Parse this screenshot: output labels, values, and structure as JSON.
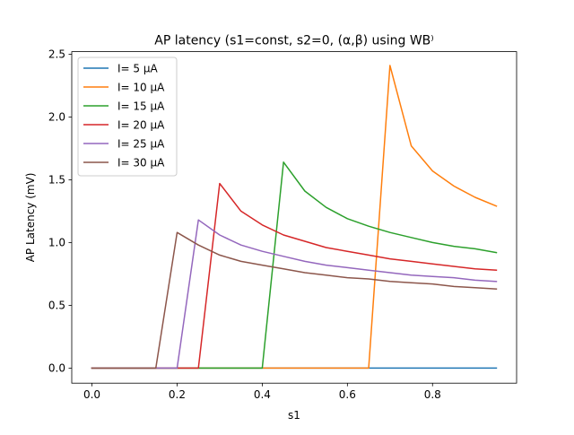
{
  "chart_data": {
    "type": "line",
    "title": "AP latency (s1=const, s2=0, (α,β) using WB⁾",
    "xlabel": "s1",
    "ylabel": "AP Latency (mV)",
    "xlim": [
      -0.0475,
      0.9975
    ],
    "ylim": [
      -0.12,
      2.52
    ],
    "xticks": [
      0.0,
      0.2,
      0.4,
      0.6,
      0.8
    ],
    "xtick_labels": [
      "0.0",
      "0.2",
      "0.4",
      "0.6",
      "0.8"
    ],
    "yticks": [
      0.0,
      0.5,
      1.0,
      1.5,
      2.0,
      2.5
    ],
    "ytick_labels": [
      "0.0",
      "0.5",
      "1.0",
      "1.5",
      "2.0",
      "2.5"
    ],
    "grid": false,
    "legend_position": "top-left",
    "x": [
      0.0,
      0.05,
      0.1,
      0.15,
      0.2,
      0.25,
      0.3,
      0.35,
      0.4,
      0.45,
      0.5,
      0.55,
      0.6,
      0.65,
      0.7,
      0.75,
      0.8,
      0.85,
      0.9,
      0.95
    ],
    "series": [
      {
        "name": "I= 5 μA",
        "color": "#1f77b4",
        "values": [
          0,
          0,
          0,
          0,
          0,
          0,
          0,
          0,
          0,
          0,
          0,
          0,
          0,
          0,
          0,
          0,
          0,
          0,
          0,
          0
        ]
      },
      {
        "name": "I= 10 μA",
        "color": "#ff7f0e",
        "values": [
          0,
          0,
          0,
          0,
          0,
          0,
          0,
          0,
          0,
          0,
          0,
          0,
          0,
          0,
          2.41,
          1.77,
          1.57,
          1.45,
          1.36,
          1.29
        ]
      },
      {
        "name": "I= 15 μA",
        "color": "#2ca02c",
        "values": [
          0,
          0,
          0,
          0,
          0,
          0,
          0,
          0,
          0,
          1.64,
          1.41,
          1.28,
          1.19,
          1.13,
          1.08,
          1.04,
          1.0,
          0.97,
          0.95,
          0.92
        ]
      },
      {
        "name": "I= 20 μA",
        "color": "#d62728",
        "values": [
          0,
          0,
          0,
          0,
          0,
          0,
          1.47,
          1.25,
          1.14,
          1.06,
          1.01,
          0.96,
          0.93,
          0.9,
          0.87,
          0.85,
          0.83,
          0.81,
          0.79,
          0.78
        ]
      },
      {
        "name": "I= 25 μA",
        "color": "#9467bd",
        "values": [
          0,
          0,
          0,
          0,
          0,
          1.18,
          1.06,
          0.98,
          0.93,
          0.89,
          0.85,
          0.82,
          0.8,
          0.78,
          0.76,
          0.74,
          0.73,
          0.72,
          0.7,
          0.69
        ]
      },
      {
        "name": "I= 30 μA",
        "color": "#8c564b",
        "values": [
          0,
          0,
          0,
          0,
          1.08,
          0.98,
          0.9,
          0.85,
          0.82,
          0.79,
          0.76,
          0.74,
          0.72,
          0.71,
          0.69,
          0.68,
          0.67,
          0.65,
          0.64,
          0.63
        ]
      }
    ]
  }
}
